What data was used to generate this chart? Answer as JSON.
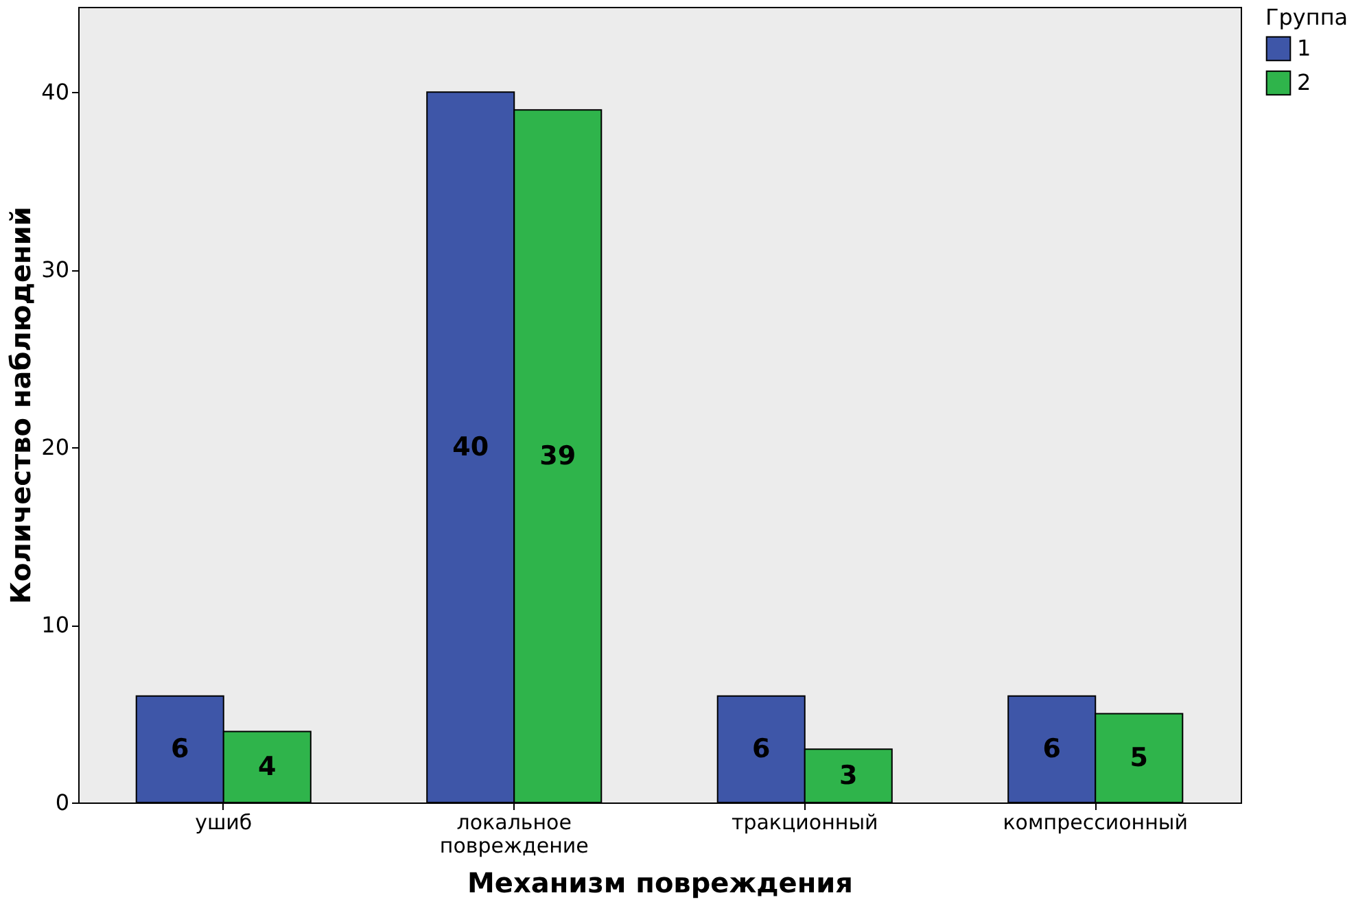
{
  "chart_data": {
    "type": "bar",
    "xlabel": "Механизм повреждения",
    "ylabel": "Количество наблюдений",
    "legend_title": "Группа",
    "categories": [
      "ушиб",
      "локальное повреждение",
      "тракционный",
      "компрессионный"
    ],
    "series": [
      {
        "name": "1",
        "color": "#3e56a8",
        "values": [
          6,
          40,
          6,
          6
        ]
      },
      {
        "name": "2",
        "color": "#2fb44b",
        "values": [
          4,
          39,
          3,
          5
        ]
      }
    ],
    "ylim": [
      0,
      44.8
    ],
    "yticks": [
      0,
      10,
      20,
      30,
      40
    ],
    "grid": false,
    "legend": "top right",
    "data_labels": true
  }
}
